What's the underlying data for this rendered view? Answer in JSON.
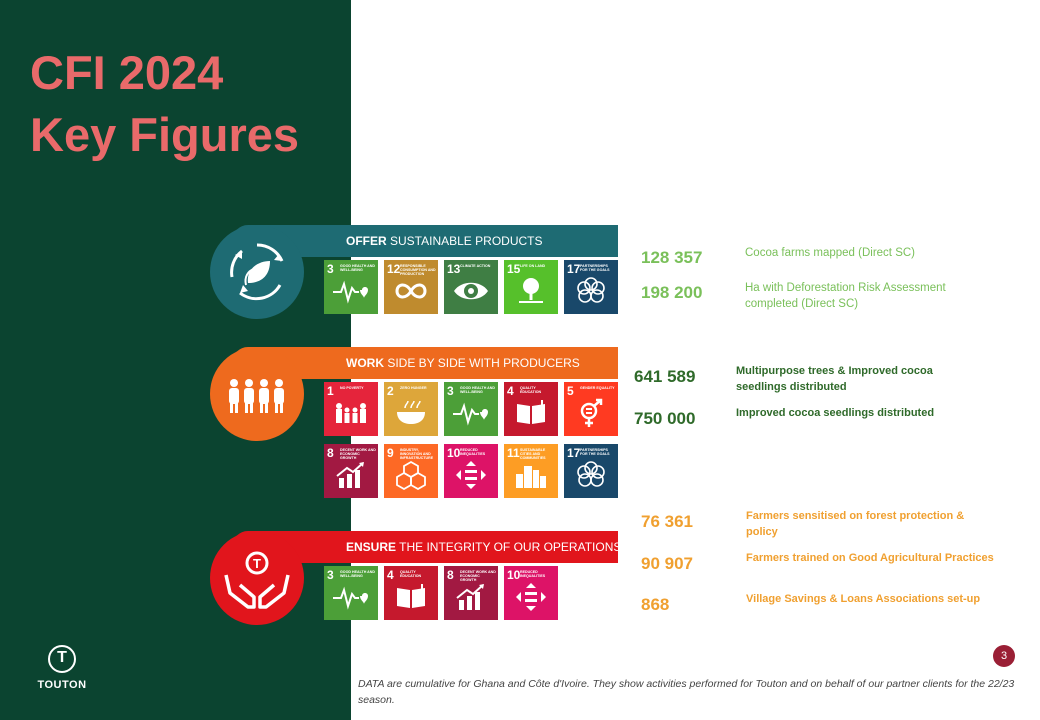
{
  "title": {
    "line1": "CFI 2024",
    "line2": "Key Figures"
  },
  "logo": {
    "letter": "T",
    "name": "TOUTON"
  },
  "sections": [
    {
      "keyword": "OFFER",
      "rest": " SUSTAINABLE PRODUCTS",
      "color": "#1e6b73",
      "icon": "leaf-recycle-icon",
      "tiles": [
        {
          "num": "3",
          "cap": "GOOD HEALTH AND WELL-BEING",
          "color": "#4c9f38",
          "icon": "heartbeat-icon"
        },
        {
          "num": "12",
          "cap": "RESPONSIBLE CONSUMPTION AND PRODUCTION",
          "color": "#bf8b2e",
          "icon": "infinity-icon"
        },
        {
          "num": "13",
          "cap": "CLIMATE ACTION",
          "color": "#3f7e44",
          "icon": "eye-globe-icon"
        },
        {
          "num": "15",
          "cap": "LIFE ON LAND",
          "color": "#56c02b",
          "icon": "tree-icon"
        },
        {
          "num": "17",
          "cap": "PARTNERSHIPS FOR THE GOALS",
          "color": "#19486a",
          "icon": "flower-rings-icon"
        }
      ]
    },
    {
      "keyword": "WORK",
      "rest": " SIDE BY SIDE WITH PRODUCERS",
      "color": "#ee6a1e",
      "icon": "people-icon",
      "tiles": [
        {
          "num": "1",
          "cap": "NO POVERTY",
          "color": "#e5243b",
          "icon": "family-icon"
        },
        {
          "num": "2",
          "cap": "ZERO HUNGER",
          "color": "#dda63a",
          "icon": "bowl-icon"
        },
        {
          "num": "3",
          "cap": "GOOD HEALTH AND WELL-BEING",
          "color": "#4c9f38",
          "icon": "heartbeat-icon"
        },
        {
          "num": "4",
          "cap": "QUALITY EDUCATION",
          "color": "#c5192d",
          "icon": "book-icon"
        },
        {
          "num": "5",
          "cap": "GENDER EQUALITY",
          "color": "#ff3a21",
          "icon": "gender-icon"
        },
        {
          "num": "8",
          "cap": "DECENT WORK AND ECONOMIC GROWTH",
          "color": "#a21942",
          "icon": "growth-chart-icon"
        },
        {
          "num": "9",
          "cap": "INDUSTRY, INNOVATION AND INFRASTRUCTURE",
          "color": "#fd6925",
          "icon": "cubes-icon"
        },
        {
          "num": "10",
          "cap": "REDUCED INEQUALITIES",
          "color": "#dd1367",
          "icon": "equal-arrows-icon"
        },
        {
          "num": "11",
          "cap": "SUSTAINABLE CITIES AND COMMUNITIES",
          "color": "#fd9d24",
          "icon": "city-icon"
        },
        {
          "num": "17",
          "cap": "PARTNERSHIPS FOR THE GOALS",
          "color": "#19486a",
          "icon": "flower-rings-icon"
        }
      ]
    },
    {
      "keyword": "ENSURE",
      "rest": " THE INTEGRITY OF OUR OPERATIONS",
      "color": "#e1151c",
      "icon": "hands-logo-icon",
      "tiles": [
        {
          "num": "3",
          "cap": "GOOD HEALTH AND WELL-BEING",
          "color": "#4c9f38",
          "icon": "heartbeat-icon"
        },
        {
          "num": "4",
          "cap": "QUALITY EDUCATION",
          "color": "#c5192d",
          "icon": "book-icon"
        },
        {
          "num": "8",
          "cap": "DECENT WORK AND ECONOMIC GROWTH",
          "color": "#a21942",
          "icon": "growth-chart-icon"
        },
        {
          "num": "10",
          "cap": "REDUCED INEQUALITIES",
          "color": "#dd1367",
          "icon": "equal-arrows-icon"
        }
      ]
    }
  ],
  "figures": [
    {
      "value": "128 357",
      "label": "Cocoa farms mapped (Direct SC)"
    },
    {
      "value": "198 200",
      "label": "Ha with Deforestation Risk Assessment completed (Direct SC)"
    },
    {
      "value": "641 589",
      "label": "Multipurpose trees & Improved cocoa seedlings distributed"
    },
    {
      "value": "750 000",
      "label": "Improved cocoa  seedlings distributed"
    },
    {
      "value": "76 361",
      "label": "Farmers sensitised on forest protection & policy"
    },
    {
      "value": "90 907",
      "label": "Farmers trained on Good Agricultural Practices"
    },
    {
      "value": "868",
      "label": "Village Savings  & Loans Associations  set-up"
    }
  ],
  "page_number": "3",
  "footnote": "DATA are cumulative for Ghana  and  Côte d'Ivoire. They show activities performed for Touton and on behalf of our partner clients for the 22/23 season."
}
